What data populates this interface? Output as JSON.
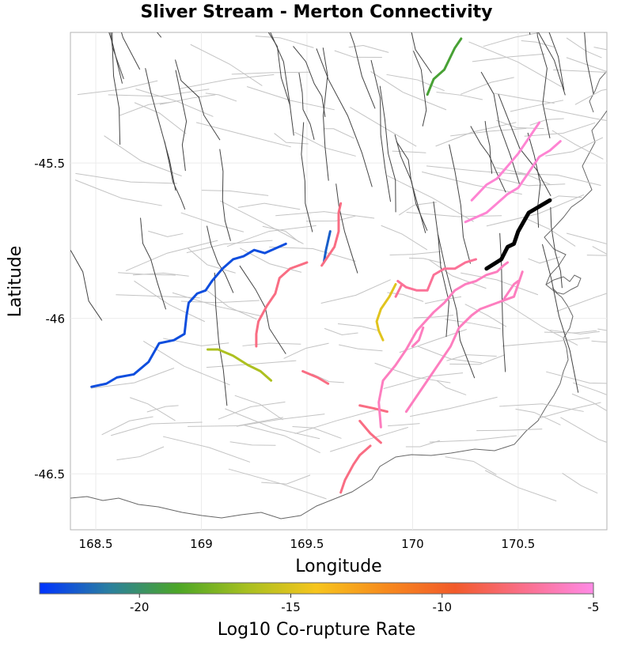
{
  "title": "Sliver Stream - Merton Connectivity",
  "axes": {
    "xlabel": "Longitude",
    "ylabel": "Latitude",
    "xlim": [
      168.38,
      170.92
    ],
    "ylim": [
      -46.68,
      -45.08
    ],
    "xticks": [
      {
        "value": 168.5,
        "label": "168.5"
      },
      {
        "value": 169,
        "label": "169"
      },
      {
        "value": 169.5,
        "label": "169.5"
      },
      {
        "value": 170,
        "label": "170"
      },
      {
        "value": 170.5,
        "label": "170.5"
      }
    ],
    "yticks": [
      {
        "value": -45.5,
        "label": "-45.5"
      },
      {
        "value": -46,
        "label": "-46"
      },
      {
        "value": -46.5,
        "label": "-46.5"
      }
    ]
  },
  "colorbar": {
    "title": "Log10 Co-rupture Rate",
    "min": -23.3,
    "max": -5,
    "ticks": [
      {
        "value": -20,
        "label": "-20"
      },
      {
        "value": -15,
        "label": "-15"
      },
      {
        "value": -10,
        "label": "-10"
      },
      {
        "value": -5,
        "label": "-5"
      }
    ],
    "stops": [
      "#0033ff",
      "#2a7fa0",
      "#4ca626",
      "#a8c020",
      "#f7c51d",
      "#f78a1d",
      "#f25a2a",
      "#fa6f8c",
      "#ff8ae6"
    ]
  },
  "chart_data": {
    "type": "map",
    "source_fault": {
      "name": "Sliver Stream",
      "color": "#000000",
      "path": [
        [
          170.35,
          -45.84
        ],
        [
          170.42,
          -45.81
        ],
        [
          170.45,
          -45.77
        ],
        [
          170.48,
          -45.76
        ],
        [
          170.5,
          -45.72
        ],
        [
          170.55,
          -45.66
        ],
        [
          170.65,
          -45.62
        ]
      ]
    },
    "ruptures": [
      {
        "log10_rate": -22.5,
        "path": [
          [
            168.48,
            -46.22
          ],
          [
            168.55,
            -46.21
          ],
          [
            168.6,
            -46.19
          ],
          [
            168.68,
            -46.18
          ],
          [
            168.75,
            -46.14
          ],
          [
            168.8,
            -46.08
          ],
          [
            168.87,
            -46.07
          ],
          [
            168.92,
            -46.05
          ],
          [
            168.93,
            -45.99
          ],
          [
            168.94,
            -45.95
          ],
          [
            168.98,
            -45.92
          ],
          [
            169.02,
            -45.91
          ],
          [
            169.05,
            -45.88
          ],
          [
            169.1,
            -45.84
          ],
          [
            169.15,
            -45.81
          ],
          [
            169.2,
            -45.8
          ],
          [
            169.25,
            -45.78
          ],
          [
            169.3,
            -45.79
          ],
          [
            169.4,
            -45.76
          ]
        ]
      },
      {
        "log10_rate": -22.0,
        "path": [
          [
            169.58,
            -45.82
          ],
          [
            169.59,
            -45.78
          ],
          [
            169.6,
            -45.75
          ],
          [
            169.61,
            -45.72
          ]
        ]
      },
      {
        "log10_rate": -19.0,
        "path": [
          [
            170.07,
            -45.28
          ],
          [
            170.1,
            -45.23
          ],
          [
            170.15,
            -45.2
          ],
          [
            170.2,
            -45.13
          ],
          [
            170.23,
            -45.1
          ]
        ]
      },
      {
        "log10_rate": -16.3,
        "path": [
          [
            169.03,
            -46.1
          ],
          [
            169.08,
            -46.1
          ],
          [
            169.15,
            -46.12
          ],
          [
            169.22,
            -46.15
          ],
          [
            169.28,
            -46.17
          ],
          [
            169.33,
            -46.2
          ]
        ]
      },
      {
        "log10_rate": -14.8,
        "path": [
          [
            169.92,
            -45.89
          ],
          [
            169.89,
            -45.93
          ],
          [
            169.85,
            -45.97
          ],
          [
            169.83,
            -46.01
          ],
          [
            169.84,
            -46.04
          ],
          [
            169.86,
            -46.07
          ]
        ]
      },
      {
        "log10_rate": -7.5,
        "path": [
          [
            169.5,
            -45.82
          ],
          [
            169.42,
            -45.84
          ],
          [
            169.37,
            -45.87
          ],
          [
            169.35,
            -45.92
          ],
          [
            169.31,
            -45.96
          ],
          [
            169.27,
            -46.01
          ],
          [
            169.26,
            -46.05
          ],
          [
            169.26,
            -46.09
          ]
        ]
      },
      {
        "log10_rate": -7.5,
        "path": [
          [
            169.57,
            -45.83
          ],
          [
            169.6,
            -45.8
          ],
          [
            169.63,
            -45.77
          ],
          [
            169.65,
            -45.72
          ],
          [
            169.65,
            -45.66
          ],
          [
            169.66,
            -45.63
          ]
        ]
      },
      {
        "log10_rate": -7.5,
        "path": [
          [
            169.48,
            -46.17
          ],
          [
            169.55,
            -46.19
          ],
          [
            169.6,
            -46.21
          ]
        ]
      },
      {
        "log10_rate": -7.5,
        "path": [
          [
            169.75,
            -46.28
          ],
          [
            169.82,
            -46.29
          ],
          [
            169.88,
            -46.3
          ]
        ]
      },
      {
        "log10_rate": -7.5,
        "path": [
          [
            169.75,
            -46.33
          ],
          [
            169.8,
            -46.37
          ],
          [
            169.85,
            -46.4
          ]
        ]
      },
      {
        "log10_rate": -7.5,
        "path": [
          [
            169.8,
            -46.41
          ],
          [
            169.75,
            -46.44
          ],
          [
            169.72,
            -46.47
          ],
          [
            169.68,
            -46.52
          ],
          [
            169.66,
            -46.56
          ]
        ]
      },
      {
        "log10_rate": -7.0,
        "path": [
          [
            169.93,
            -45.88
          ],
          [
            169.97,
            -45.9
          ],
          [
            170.02,
            -45.91
          ],
          [
            170.07,
            -45.91
          ],
          [
            170.1,
            -45.86
          ],
          [
            170.15,
            -45.84
          ],
          [
            170.2,
            -45.84
          ],
          [
            170.25,
            -45.82
          ],
          [
            170.3,
            -45.81
          ]
        ]
      },
      {
        "log10_rate": -7.0,
        "path": [
          [
            169.92,
            -45.93
          ],
          [
            169.95,
            -45.89
          ]
        ]
      },
      {
        "log10_rate": -6.0,
        "path": [
          [
            169.85,
            -46.35
          ],
          [
            169.84,
            -46.27
          ],
          [
            169.86,
            -46.2
          ],
          [
            169.92,
            -46.15
          ],
          [
            169.97,
            -46.1
          ],
          [
            170.02,
            -46.04
          ],
          [
            170.1,
            -45.98
          ],
          [
            170.15,
            -45.95
          ],
          [
            170.2,
            -45.91
          ],
          [
            170.25,
            -45.89
          ],
          [
            170.3,
            -45.88
          ],
          [
            170.35,
            -45.86
          ],
          [
            170.4,
            -45.85
          ],
          [
            170.43,
            -45.83
          ],
          [
            170.45,
            -45.82
          ]
        ]
      },
      {
        "log10_rate": -6.0,
        "path": [
          [
            169.97,
            -46.3
          ],
          [
            170.03,
            -46.24
          ],
          [
            170.08,
            -46.19
          ],
          [
            170.13,
            -46.14
          ],
          [
            170.18,
            -46.09
          ],
          [
            170.22,
            -46.03
          ],
          [
            170.28,
            -45.99
          ],
          [
            170.32,
            -45.97
          ],
          [
            170.4,
            -45.95
          ],
          [
            170.48,
            -45.93
          ],
          [
            170.52,
            -45.85
          ]
        ]
      },
      {
        "log10_rate": -6.0,
        "path": [
          [
            170.43,
            -45.94
          ],
          [
            170.48,
            -45.89
          ],
          [
            170.5,
            -45.88
          ]
        ]
      },
      {
        "log10_rate": -6.0,
        "path": [
          [
            170.0,
            -46.09
          ],
          [
            170.03,
            -46.07
          ],
          [
            170.05,
            -46.03
          ]
        ]
      },
      {
        "log10_rate": -5.5,
        "path": [
          [
            170.25,
            -45.69
          ],
          [
            170.35,
            -45.66
          ],
          [
            170.4,
            -45.63
          ],
          [
            170.45,
            -45.6
          ],
          [
            170.5,
            -45.58
          ],
          [
            170.55,
            -45.53
          ],
          [
            170.6,
            -45.48
          ],
          [
            170.65,
            -45.46
          ],
          [
            170.7,
            -45.43
          ]
        ]
      },
      {
        "log10_rate": -5.5,
        "path": [
          [
            170.28,
            -45.62
          ],
          [
            170.35,
            -45.57
          ],
          [
            170.4,
            -45.55
          ],
          [
            170.45,
            -45.51
          ],
          [
            170.5,
            -45.47
          ],
          [
            170.55,
            -45.42
          ],
          [
            170.6,
            -45.37
          ]
        ]
      }
    ]
  }
}
